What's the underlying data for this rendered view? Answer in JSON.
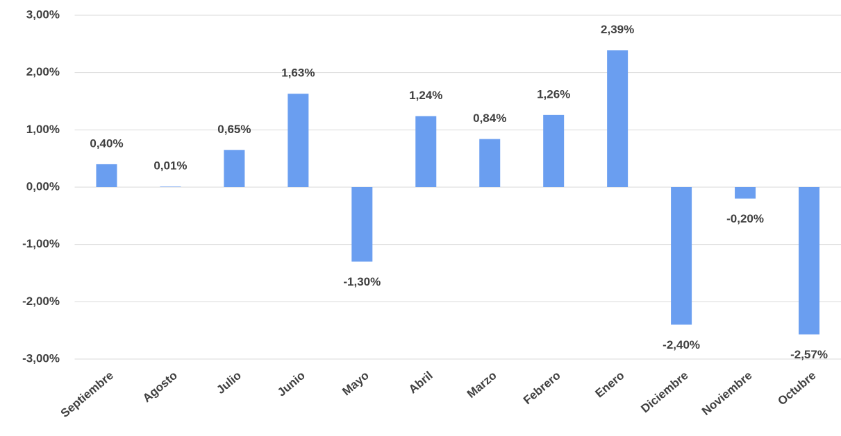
{
  "chart_data": {
    "type": "bar",
    "categories": [
      "Septiembre",
      "Agosto",
      "Julio",
      "Junio",
      "Mayo",
      "Abril",
      "Marzo",
      "Febrero",
      "Enero",
      "Diciembre",
      "Noviembre",
      "Octubre"
    ],
    "values": [
      0.4,
      0.01,
      0.65,
      1.63,
      -1.3,
      1.24,
      0.84,
      1.26,
      2.39,
      -2.4,
      -0.2,
      -2.57
    ],
    "value_labels": [
      "0,40%",
      "0,01%",
      "0,65%",
      "1,63%",
      "-1,30%",
      "1,24%",
      "0,84%",
      "1,26%",
      "2,39%",
      "-2,40%",
      "-0,20%",
      "-2,57%"
    ],
    "color": "#6a9ef0",
    "ylim": [
      -3,
      3
    ],
    "yticks": [
      {
        "value": -3,
        "label": "-3,00%"
      },
      {
        "value": -2,
        "label": "-2,00%"
      },
      {
        "value": -1,
        "label": "-1,00%"
      },
      {
        "value": 0,
        "label": "0,00%"
      },
      {
        "value": 1,
        "label": "1,00%"
      },
      {
        "value": 2,
        "label": "2,00%"
      },
      {
        "value": 3,
        "label": "3,00%"
      }
    ],
    "grid": true
  }
}
